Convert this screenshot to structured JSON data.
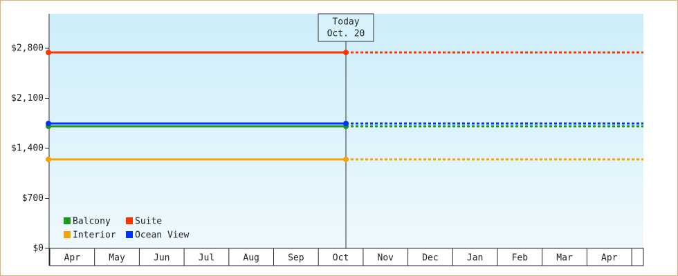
{
  "chart_data": {
    "type": "line",
    "categories": [
      "Apr",
      "May",
      "Jun",
      "Jul",
      "Aug",
      "Sep",
      "Oct",
      "Nov",
      "Dec",
      "Jan",
      "Feb",
      "Mar",
      "Apr"
    ],
    "annotation": {
      "title": "Today",
      "date": "Oct. 20"
    },
    "series": [
      {
        "name": "Balcony",
        "color": "#1a9a1a",
        "value": 1709
      },
      {
        "name": "Suite",
        "color": "#ff3300",
        "value": 2742
      },
      {
        "name": "Interior",
        "color": "#f5a300",
        "value": 1246
      },
      {
        "name": "Ocean View",
        "color": "#0033ff",
        "value": 1748
      }
    ],
    "ylim": [
      0,
      3283
    ],
    "yticks": [
      {
        "value": 0,
        "label": "$0"
      },
      {
        "value": 700,
        "label": "$700"
      },
      {
        "value": 1400,
        "label": "$1,400"
      },
      {
        "value": 2100,
        "label": "$2,100"
      },
      {
        "value": 2800,
        "label": "$2,800"
      }
    ]
  }
}
